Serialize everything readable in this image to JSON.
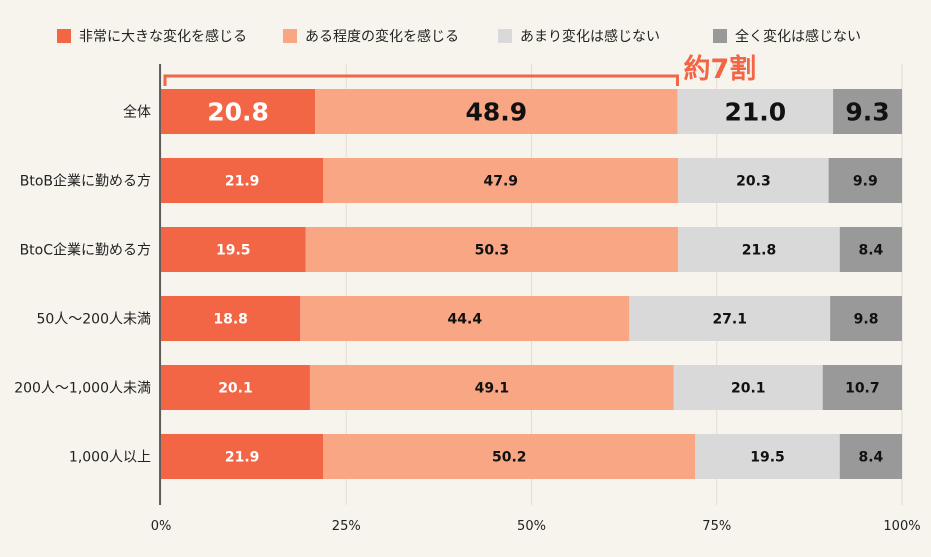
{
  "chart_data": {
    "type": "bar",
    "orientation": "horizontal",
    "stacked": true,
    "percent": true,
    "categories": [
      "全体",
      "BtoB企業に勤める方",
      "BtoC企業に勤める方",
      "50人～200人未満",
      "200人～1,000人未満",
      "1,000人以上"
    ],
    "series": [
      {
        "name": "非常に大きな変化を感じる",
        "color": "#f26545",
        "label_color": "#ffffff",
        "values": [
          20.8,
          21.9,
          19.5,
          18.8,
          20.1,
          21.9
        ]
      },
      {
        "name": "ある程度の変化を感じる",
        "color": "#f8a684",
        "label_color": "#111111",
        "values": [
          48.9,
          47.9,
          50.3,
          44.4,
          49.1,
          50.2
        ]
      },
      {
        "name": "あまり変化は感じない",
        "color": "#d9d9d9",
        "label_color": "#111111",
        "values": [
          21.0,
          20.3,
          21.8,
          27.1,
          20.1,
          19.5
        ]
      },
      {
        "name": "全く変化は感じない",
        "color": "#999999",
        "label_color": "#111111",
        "values": [
          9.3,
          9.9,
          8.4,
          9.8,
          10.7,
          8.4
        ]
      }
    ],
    "xlim": [
      0,
      100
    ],
    "x_ticks": [
      "0%",
      "25%",
      "50%",
      "75%",
      "100%"
    ],
    "grid": "vertical",
    "legend": "top",
    "annotation": {
      "text": "約7割",
      "color": "#f26545",
      "covers_series": [
        0,
        1
      ],
      "row": 0
    }
  }
}
